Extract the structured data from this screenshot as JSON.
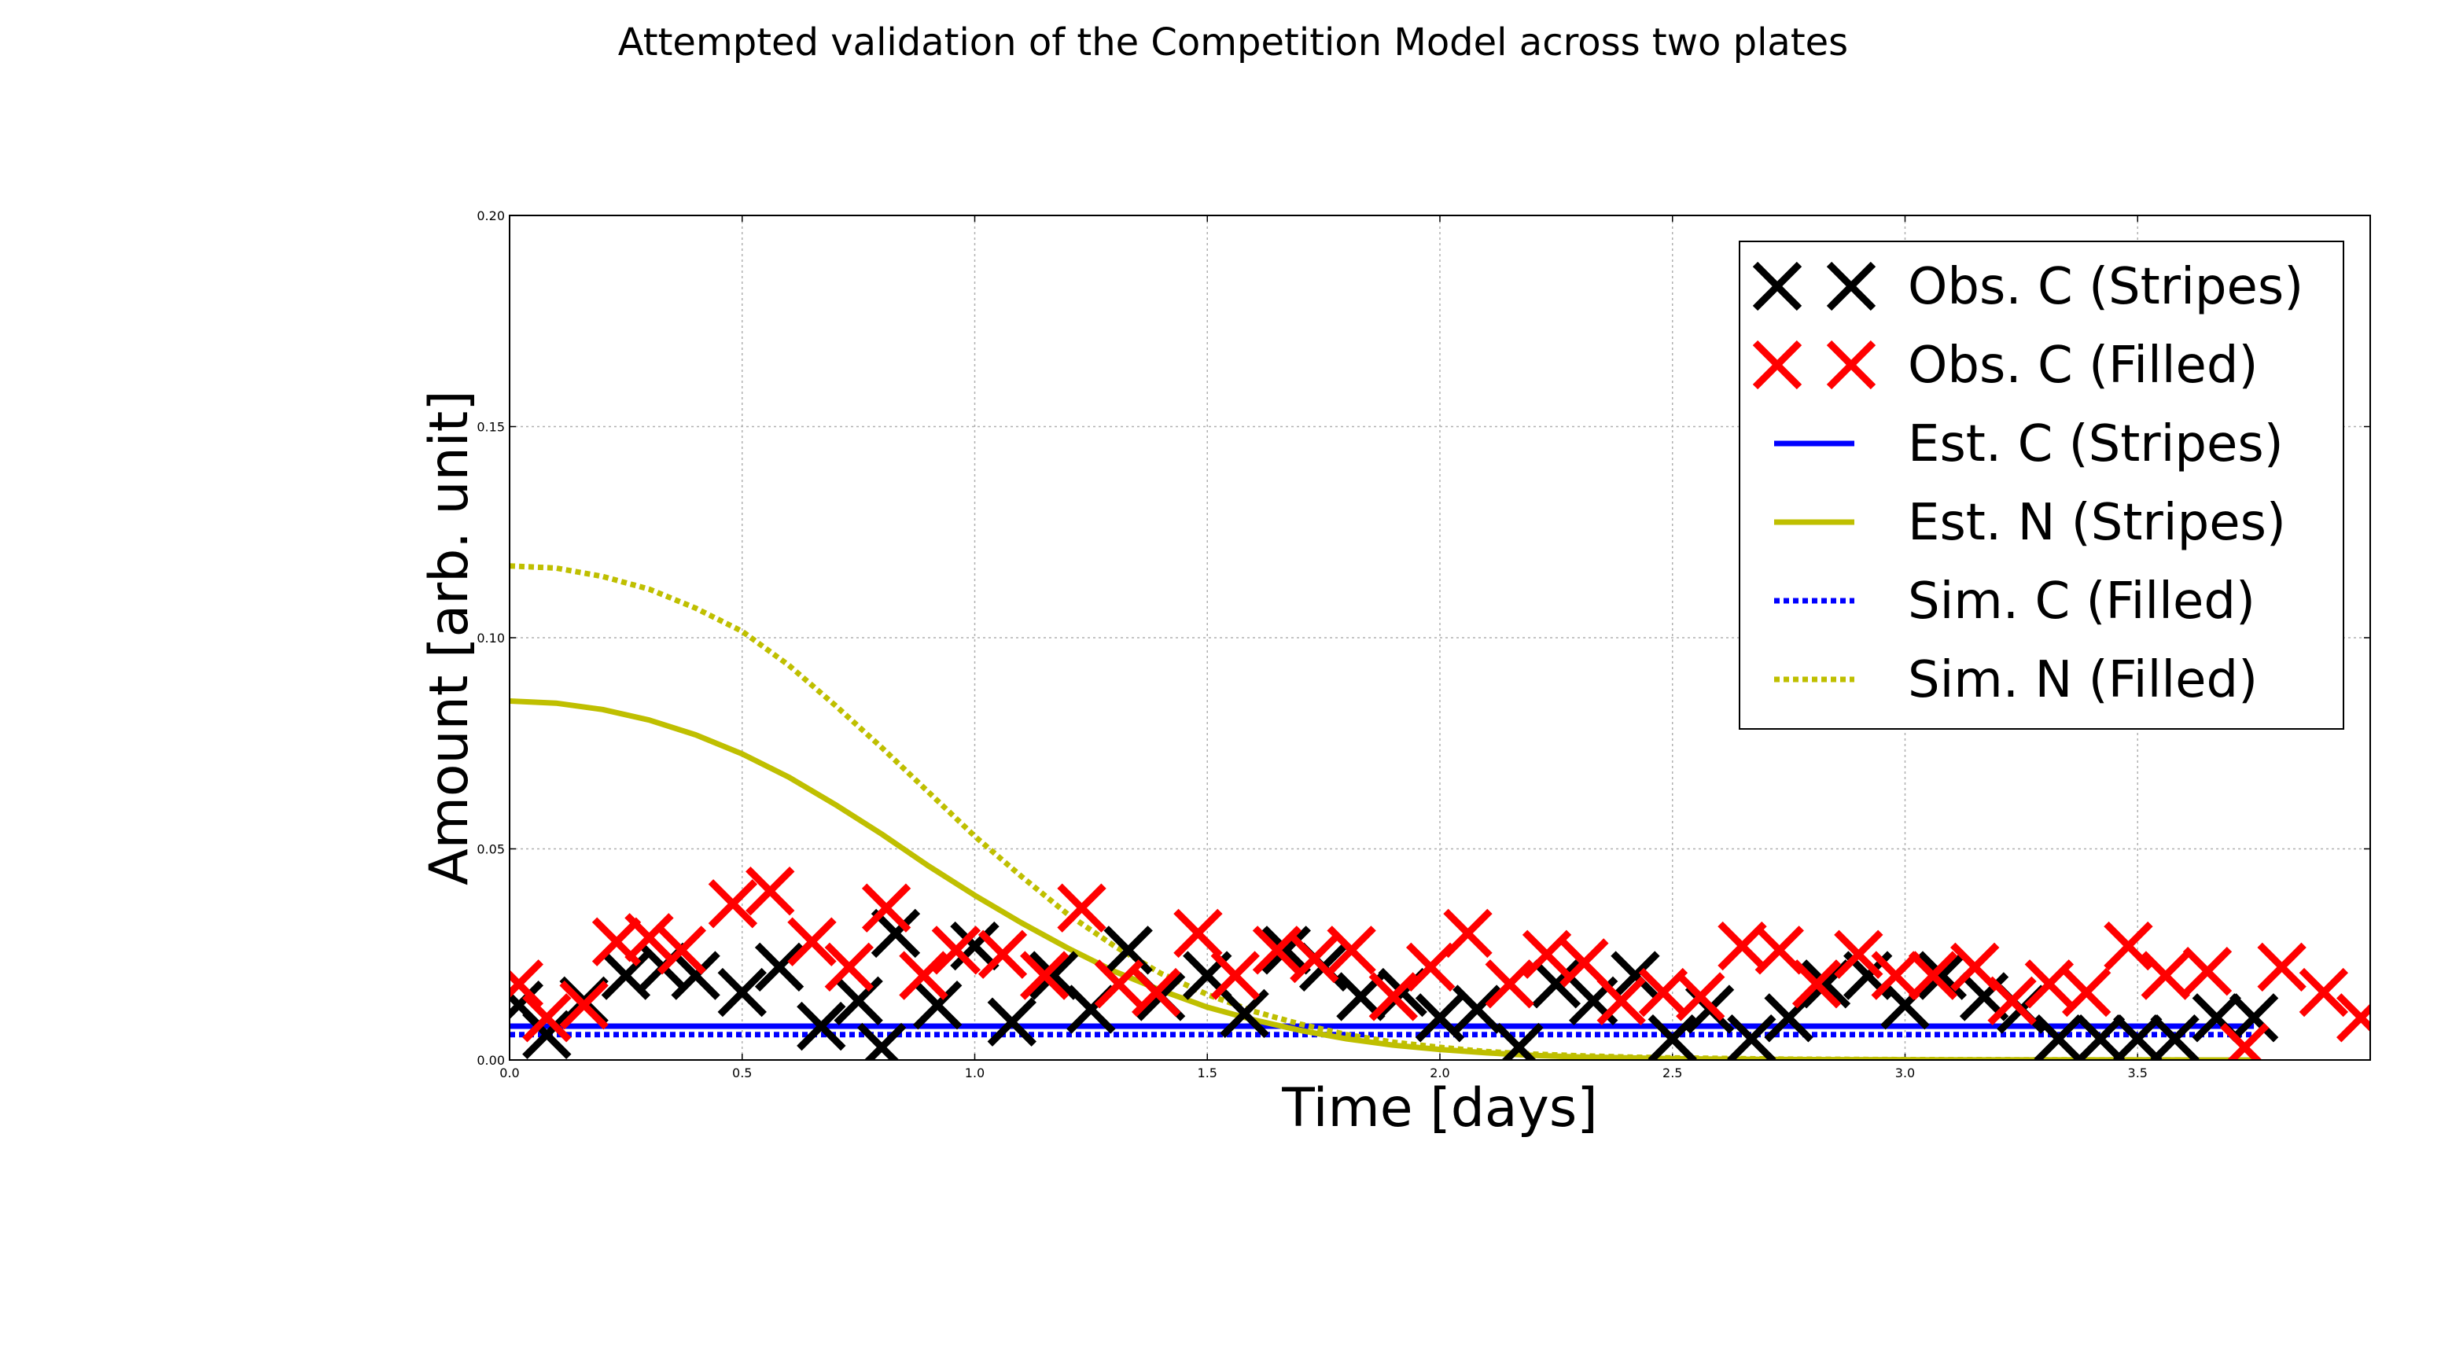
{
  "chart_data": {
    "type": "line",
    "title": "Attempted validation of the Competition Model across two plates",
    "xlabel": "Time [days]",
    "ylabel": "Amount [arb. unit]",
    "xlim": [
      0,
      4.0
    ],
    "ylim": [
      0,
      0.2
    ],
    "x_ticks": [
      0,
      0.5,
      1.0,
      1.5,
      2.0,
      2.5,
      3.0,
      3.5
    ],
    "x_tick_labels": [
      "0.0",
      "0.5",
      "1.0",
      "1.5",
      "2.0",
      "2.5",
      "3.0",
      "3.5"
    ],
    "y_ticks": [
      0,
      0.05,
      0.1,
      0.15,
      0.2
    ],
    "y_tick_labels": [
      "0.00",
      "0.05",
      "0.10",
      "0.15",
      "0.20"
    ],
    "grid": true,
    "legend_position": "top-right",
    "series": [
      {
        "name": "Obs. C (Stripes)",
        "kind": "scatter",
        "marker": "x",
        "color": "#000000",
        "x": [
          0.02,
          0.08,
          0.16,
          0.25,
          0.33,
          0.4,
          0.5,
          0.58,
          0.67,
          0.75,
          0.8,
          0.83,
          0.92,
          1.0,
          1.08,
          1.17,
          1.25,
          1.33,
          1.4,
          1.5,
          1.58,
          1.67,
          1.75,
          1.83,
          1.92,
          2.0,
          2.08,
          2.17,
          2.25,
          2.33,
          2.42,
          2.5,
          2.58,
          2.67,
          2.75,
          2.83,
          2.92,
          3.0,
          3.08,
          3.17,
          3.25,
          3.33,
          3.42,
          3.5,
          3.58,
          3.67,
          3.75
        ],
        "y": [
          0.013,
          0.006,
          0.014,
          0.02,
          0.022,
          0.02,
          0.016,
          0.022,
          0.008,
          0.014,
          0.003,
          0.03,
          0.013,
          0.027,
          0.009,
          0.02,
          0.012,
          0.026,
          0.015,
          0.02,
          0.011,
          0.026,
          0.022,
          0.015,
          0.016,
          0.01,
          0.012,
          0.003,
          0.018,
          0.014,
          0.02,
          0.005,
          0.012,
          0.005,
          0.01,
          0.018,
          0.02,
          0.013,
          0.02,
          0.015,
          0.012,
          0.005,
          0.005,
          0.005,
          0.005,
          0.01,
          0.01
        ]
      },
      {
        "name": "Obs. C (Filled)",
        "kind": "scatter",
        "marker": "x",
        "color": "#ff0000",
        "x": [
          0.02,
          0.08,
          0.16,
          0.23,
          0.3,
          0.37,
          0.48,
          0.56,
          0.65,
          0.73,
          0.81,
          0.89,
          0.96,
          1.06,
          1.15,
          1.23,
          1.31,
          1.39,
          1.48,
          1.56,
          1.65,
          1.73,
          1.81,
          1.9,
          1.98,
          2.06,
          2.15,
          2.23,
          2.31,
          2.39,
          2.48,
          2.56,
          2.65,
          2.73,
          2.81,
          2.9,
          2.98,
          3.06,
          3.15,
          3.23,
          3.31,
          3.39,
          3.48,
          3.56,
          3.65,
          3.73,
          3.81,
          3.9,
          3.98
        ],
        "y": [
          0.018,
          0.01,
          0.013,
          0.028,
          0.029,
          0.026,
          0.037,
          0.04,
          0.028,
          0.022,
          0.036,
          0.02,
          0.026,
          0.025,
          0.02,
          0.036,
          0.018,
          0.016,
          0.03,
          0.02,
          0.026,
          0.024,
          0.026,
          0.015,
          0.022,
          0.03,
          0.018,
          0.025,
          0.023,
          0.014,
          0.016,
          0.015,
          0.027,
          0.026,
          0.018,
          0.025,
          0.02,
          0.02,
          0.022,
          0.014,
          0.018,
          0.016,
          0.027,
          0.02,
          0.021,
          0.003,
          0.022,
          0.016,
          0.01
        ]
      },
      {
        "name": "Est. C (Stripes)",
        "kind": "line",
        "style": "solid",
        "color": "#0000ff",
        "x": [
          0,
          0.5,
          1.0,
          1.5,
          2.0,
          2.5,
          3.0,
          3.5,
          3.75
        ],
        "y": [
          0.008,
          0.008,
          0.008,
          0.008,
          0.008,
          0.008,
          0.008,
          0.008,
          0.008
        ]
      },
      {
        "name": "Est. N (Stripes)",
        "kind": "line",
        "style": "solid",
        "color": "#bfbf00",
        "x": [
          0,
          0.1,
          0.2,
          0.3,
          0.4,
          0.5,
          0.6,
          0.7,
          0.8,
          0.9,
          1.0,
          1.1,
          1.2,
          1.3,
          1.4,
          1.5,
          1.6,
          1.7,
          1.8,
          1.9,
          2.0,
          2.1,
          2.2,
          2.3,
          2.4,
          2.5,
          2.6,
          2.7,
          2.8,
          2.9,
          3.0,
          3.25,
          3.5,
          3.75
        ],
        "y": [
          0.085,
          0.0845,
          0.083,
          0.0805,
          0.077,
          0.0725,
          0.067,
          0.0605,
          0.0535,
          0.046,
          0.039,
          0.0325,
          0.0265,
          0.021,
          0.0165,
          0.0125,
          0.0095,
          0.007,
          0.005,
          0.0035,
          0.0025,
          0.0017,
          0.0011,
          0.0007,
          0.0005,
          0.0003,
          0.0002,
          0.00015,
          0.0001,
          7e-05,
          5e-05,
          2e-05,
          1e-05,
          0.0
        ]
      },
      {
        "name": "Sim. C (Filled)",
        "kind": "line",
        "style": "dotted",
        "color": "#0000ff",
        "x": [
          0,
          0.5,
          1.0,
          1.5,
          2.0,
          2.5,
          3.0,
          3.5,
          3.75
        ],
        "y": [
          0.006,
          0.006,
          0.006,
          0.006,
          0.006,
          0.006,
          0.006,
          0.006,
          0.006
        ]
      },
      {
        "name": "Sim. N (Filled)",
        "kind": "line",
        "style": "dotted",
        "color": "#bfbf00",
        "x": [
          0,
          0.1,
          0.2,
          0.3,
          0.4,
          0.5,
          0.6,
          0.7,
          0.8,
          0.9,
          1.0,
          1.1,
          1.2,
          1.3,
          1.4,
          1.5,
          1.6,
          1.7,
          1.8,
          1.9,
          2.0,
          2.1,
          2.2,
          2.3,
          2.4,
          2.5,
          2.75,
          3.0,
          3.25,
          3.5,
          3.75
        ],
        "y": [
          0.117,
          0.1165,
          0.1145,
          0.1115,
          0.107,
          0.1015,
          0.0935,
          0.084,
          0.074,
          0.0635,
          0.053,
          0.0435,
          0.0345,
          0.027,
          0.0205,
          0.0155,
          0.0115,
          0.0085,
          0.006,
          0.0042,
          0.003,
          0.002,
          0.0014,
          0.001,
          0.0007,
          0.0005,
          0.0002,
          0.0001,
          5e-05,
          2e-05,
          0.0
        ]
      }
    ]
  }
}
